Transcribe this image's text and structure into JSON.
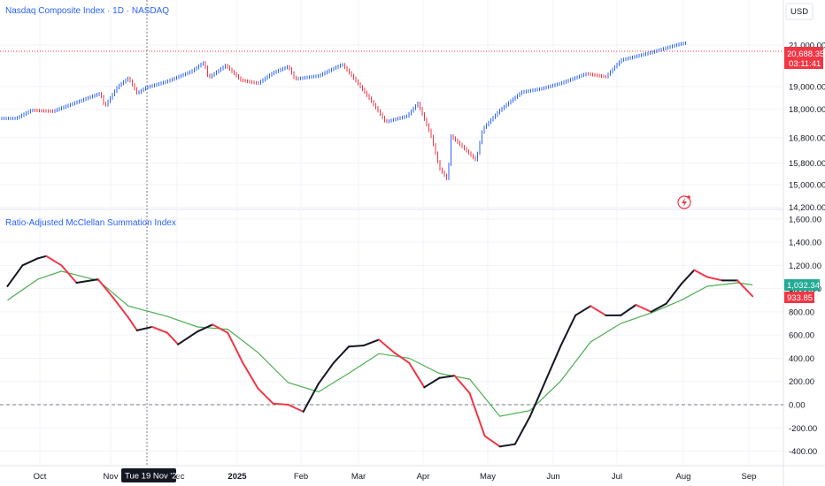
{
  "header": {
    "title": "Nasdaq Composite Index · 1D · NASDAQ",
    "currency": "USD"
  },
  "price_pane": {
    "last_price": "20,688.35",
    "countdown": "03:11:41",
    "last_price_color": "#f23645"
  },
  "indicator_pane": {
    "title": "Ratio-Adjusted McClellan Summation Index",
    "value_black_label": "1,032.34",
    "value_red_label": "933.85",
    "signal_color": "#22ab94",
    "value_color": "#f23645"
  },
  "crosshair": {
    "date_label": "Tue 19 Nov '24"
  },
  "colors": {
    "up": "#2962ff",
    "down": "#f23645",
    "signal": "#4caf50"
  },
  "chart_data": [
    {
      "type": "ohlc",
      "title": "Nasdaq Composite Index · 1D · NASDAQ",
      "y_ticks": [
        21000,
        19000,
        18000,
        16800,
        15800,
        15000,
        14200
      ],
      "y_tick_labels": [
        "21,000.00",
        "19,000.00",
        "18,000.00",
        "16,800.00",
        "15,800.00",
        "15,000.00",
        "14,200.00"
      ],
      "x_tick_labels": [
        "Oct",
        "Nov",
        "Dec",
        "2025",
        "Feb",
        "Mar",
        "Apr",
        "May",
        "Jun",
        "Jul",
        "Aug",
        "Sep"
      ],
      "last_value": 20688.35,
      "close_series": [
        {
          "x": "2024-09-20",
          "y": 17600
        },
        {
          "x": "2024-09-27",
          "y": 17950
        },
        {
          "x": "2024-10-07",
          "y": 17900
        },
        {
          "x": "2024-10-18",
          "y": 18300
        },
        {
          "x": "2024-10-29",
          "y": 18700
        },
        {
          "x": "2024-10-31",
          "y": 18100
        },
        {
          "x": "2024-11-06",
          "y": 19000
        },
        {
          "x": "2024-11-11",
          "y": 19400
        },
        {
          "x": "2024-11-15",
          "y": 18700
        },
        {
          "x": "2024-11-19",
          "y": 18950
        },
        {
          "x": "2024-11-29",
          "y": 19250
        },
        {
          "x": "2024-12-10",
          "y": 19700
        },
        {
          "x": "2024-12-16",
          "y": 20150
        },
        {
          "x": "2024-12-18",
          "y": 19400
        },
        {
          "x": "2024-12-26",
          "y": 20000
        },
        {
          "x": "2025-01-02",
          "y": 19300
        },
        {
          "x": "2025-01-10",
          "y": 19150
        },
        {
          "x": "2025-01-17",
          "y": 19650
        },
        {
          "x": "2025-01-24",
          "y": 19950
        },
        {
          "x": "2025-01-27",
          "y": 19350
        },
        {
          "x": "2025-02-07",
          "y": 19500
        },
        {
          "x": "2025-02-18",
          "y": 20050
        },
        {
          "x": "2025-02-24",
          "y": 19300
        },
        {
          "x": "2025-03-03",
          "y": 18400
        },
        {
          "x": "2025-03-10",
          "y": 17450
        },
        {
          "x": "2025-03-20",
          "y": 17700
        },
        {
          "x": "2025-03-25",
          "y": 18250
        },
        {
          "x": "2025-03-31",
          "y": 16900
        },
        {
          "x": "2025-04-04",
          "y": 15600
        },
        {
          "x": "2025-04-08",
          "y": 15150
        },
        {
          "x": "2025-04-09",
          "y": 16900
        },
        {
          "x": "2025-04-21",
          "y": 15900
        },
        {
          "x": "2025-04-24",
          "y": 17150
        },
        {
          "x": "2025-05-02",
          "y": 17950
        },
        {
          "x": "2025-05-12",
          "y": 18750
        },
        {
          "x": "2025-05-21",
          "y": 18900
        },
        {
          "x": "2025-05-30",
          "y": 19150
        },
        {
          "x": "2025-06-11",
          "y": 19600
        },
        {
          "x": "2025-06-20",
          "y": 19450
        },
        {
          "x": "2025-06-27",
          "y": 20250
        },
        {
          "x": "2025-07-10",
          "y": 20600
        },
        {
          "x": "2025-07-24",
          "y": 21050
        },
        {
          "x": "2025-07-30",
          "y": 21150
        },
        {
          "x": "2025-08-01",
          "y": 20688.35
        }
      ]
    },
    {
      "type": "line",
      "title": "Ratio-Adjusted McClellan Summation Index",
      "y_ticks": [
        1600,
        1400,
        1200,
        1000,
        800,
        600,
        400,
        200,
        0,
        -200,
        -400
      ],
      "y_tick_labels": [
        "1,600.00",
        "1,400.00",
        "1,200.00",
        "1,000.00",
        "800.00",
        "600.00",
        "400.00",
        "200.00",
        "0.00",
        "-200.00",
        "-400.00"
      ],
      "reference_line": 0,
      "series": [
        {
          "values": [
            {
              "x": "2024-09-16",
              "y": 1020
            },
            {
              "x": "2024-09-23",
              "y": 1200
            },
            {
              "x": "2024-09-30",
              "y": 1260
            },
            {
              "x": "2024-10-04",
              "y": 1280
            },
            {
              "x": "2024-10-11",
              "y": 1200
            },
            {
              "x": "2024-10-18",
              "y": 1050
            },
            {
              "x": "2024-10-28",
              "y": 1080
            },
            {
              "x": "2024-11-04",
              "y": 920
            },
            {
              "x": "2024-11-11",
              "y": 750
            },
            {
              "x": "2024-11-15",
              "y": 640
            },
            {
              "x": "2024-11-22",
              "y": 670
            },
            {
              "x": "2024-11-29",
              "y": 620
            },
            {
              "x": "2024-12-04",
              "y": 520
            },
            {
              "x": "2024-12-13",
              "y": 630
            },
            {
              "x": "2024-12-20",
              "y": 690
            },
            {
              "x": "2024-12-27",
              "y": 620
            },
            {
              "x": "2025-01-03",
              "y": 360
            },
            {
              "x": "2025-01-10",
              "y": 140
            },
            {
              "x": "2025-01-17",
              "y": 10
            },
            {
              "x": "2025-01-24",
              "y": 0
            },
            {
              "x": "2025-01-31",
              "y": -60
            },
            {
              "x": "2025-02-07",
              "y": 180
            },
            {
              "x": "2025-02-14",
              "y": 360
            },
            {
              "x": "2025-02-21",
              "y": 500
            },
            {
              "x": "2025-02-28",
              "y": 510
            },
            {
              "x": "2025-03-07",
              "y": 560
            },
            {
              "x": "2025-03-14",
              "y": 450
            },
            {
              "x": "2025-03-21",
              "y": 360
            },
            {
              "x": "2025-03-28",
              "y": 150
            },
            {
              "x": "2025-04-04",
              "y": 230
            },
            {
              "x": "2025-04-11",
              "y": 250
            },
            {
              "x": "2025-04-18",
              "y": 100
            },
            {
              "x": "2025-04-25",
              "y": -270
            },
            {
              "x": "2025-05-02",
              "y": -360
            },
            {
              "x": "2025-05-09",
              "y": -340
            },
            {
              "x": "2025-05-16",
              "y": -100
            },
            {
              "x": "2025-05-23",
              "y": 200
            },
            {
              "x": "2025-05-30",
              "y": 500
            },
            {
              "x": "2025-06-06",
              "y": 770
            },
            {
              "x": "2025-06-13",
              "y": 850
            },
            {
              "x": "2025-06-20",
              "y": 770
            },
            {
              "x": "2025-06-27",
              "y": 770
            },
            {
              "x": "2025-07-04",
              "y": 860
            },
            {
              "x": "2025-07-11",
              "y": 800
            },
            {
              "x": "2025-07-18",
              "y": 870
            },
            {
              "x": "2025-07-25",
              "y": 1040
            },
            {
              "x": "2025-07-31",
              "y": 1160
            },
            {
              "x": "2025-08-06",
              "y": 1100
            },
            {
              "x": "2025-08-13",
              "y": 1070
            },
            {
              "x": "2025-08-20",
              "y": 1070
            },
            {
              "x": "2025-08-27",
              "y": 933.85
            }
          ]
        },
        {
          "values": [
            {
              "x": "2024-09-16",
              "y": 900
            },
            {
              "x": "2024-09-30",
              "y": 1080
            },
            {
              "x": "2024-10-11",
              "y": 1150
            },
            {
              "x": "2024-10-28",
              "y": 1070
            },
            {
              "x": "2024-11-11",
              "y": 850
            },
            {
              "x": "2024-11-29",
              "y": 760
            },
            {
              "x": "2024-12-13",
              "y": 670
            },
            {
              "x": "2024-12-27",
              "y": 650
            },
            {
              "x": "2025-01-10",
              "y": 450
            },
            {
              "x": "2025-01-24",
              "y": 190
            },
            {
              "x": "2025-02-07",
              "y": 110
            },
            {
              "x": "2025-02-21",
              "y": 270
            },
            {
              "x": "2025-03-07",
              "y": 440
            },
            {
              "x": "2025-03-21",
              "y": 400
            },
            {
              "x": "2025-04-04",
              "y": 270
            },
            {
              "x": "2025-04-18",
              "y": 220
            },
            {
              "x": "2025-05-02",
              "y": -100
            },
            {
              "x": "2025-05-16",
              "y": -50
            },
            {
              "x": "2025-05-30",
              "y": 200
            },
            {
              "x": "2025-06-13",
              "y": 540
            },
            {
              "x": "2025-06-27",
              "y": 700
            },
            {
              "x": "2025-07-11",
              "y": 790
            },
            {
              "x": "2025-07-25",
              "y": 900
            },
            {
              "x": "2025-08-06",
              "y": 1020
            },
            {
              "x": "2025-08-20",
              "y": 1050
            },
            {
              "x": "2025-08-27",
              "y": 1032.34
            }
          ]
        }
      ]
    }
  ]
}
